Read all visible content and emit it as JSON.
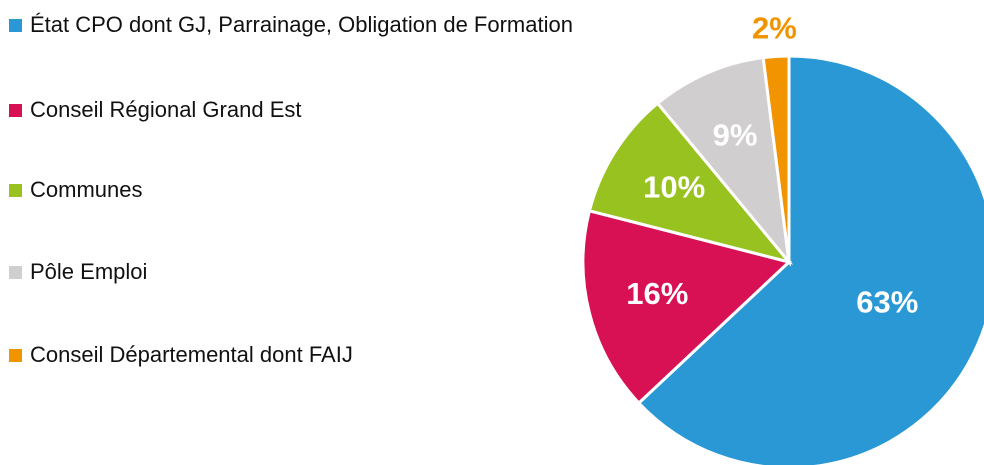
{
  "chart_data": {
    "type": "pie",
    "categories": [
      "État CPO dont GJ, Parrainage, Obligation de Formation",
      "Conseil Régional Grand Est",
      "Communes",
      "Pôle Emploi",
      "Conseil Départemental dont FAIJ"
    ],
    "values": [
      63,
      16,
      10,
      9,
      2
    ],
    "value_labels": [
      "63%",
      "16%",
      "10%",
      "9%",
      "2%"
    ],
    "colors": [
      "#2b98d6",
      "#d81054",
      "#98c21f",
      "#d0cece",
      "#f29400"
    ],
    "legend": "left"
  }
}
